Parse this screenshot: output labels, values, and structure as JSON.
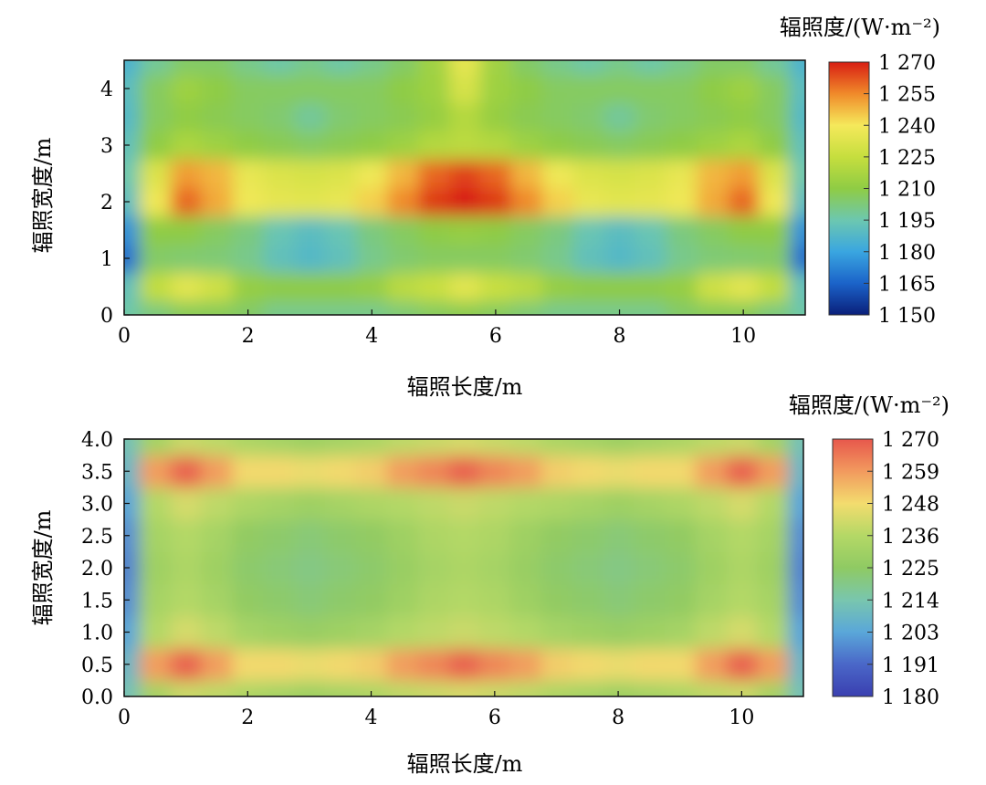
{
  "chart_data": [
    {
      "type": "heatmap",
      "title": "",
      "xlabel": "辐照长度/m",
      "ylabel": "辐照宽度/m",
      "colorbar_label": "辐照度/(W·m⁻²)",
      "xlim": [
        0,
        11
      ],
      "ylim": [
        0,
        4.5
      ],
      "xticks": [
        0,
        2,
        4,
        6,
        8,
        10
      ],
      "yticks": [
        0,
        1,
        2,
        3,
        4
      ],
      "colorbar_ticks": [
        "1 270",
        "1 255",
        "1 240",
        "1 225",
        "1 210",
        "1 195",
        "1 180",
        "1 165",
        "1 150"
      ],
      "vmin": 1150,
      "vmax": 1270,
      "x": [
        0,
        0.5,
        1,
        1.5,
        2,
        2.5,
        3,
        3.5,
        4,
        4.5,
        5,
        5.5,
        6,
        6.5,
        7,
        7.5,
        8,
        8.5,
        9,
        9.5,
        10,
        10.5,
        11
      ],
      "y": [
        0,
        0.5,
        1,
        1.5,
        2,
        2.5,
        3,
        3.5,
        4,
        4.5
      ],
      "z": [
        [
          1196,
          1202,
          1207,
          1207,
          1205,
          1200,
          1200,
          1200,
          1200,
          1203,
          1206,
          1208,
          1206,
          1203,
          1200,
          1200,
          1200,
          1200,
          1205,
          1207,
          1207,
          1202,
          1196
        ],
        [
          1192,
          1224,
          1234,
          1228,
          1212,
          1210,
          1210,
          1210,
          1212,
          1222,
          1226,
          1234,
          1226,
          1222,
          1212,
          1210,
          1210,
          1210,
          1212,
          1228,
          1234,
          1224,
          1192
        ],
        [
          1168,
          1205,
          1204,
          1203,
          1200,
          1192,
          1188,
          1192,
          1200,
          1204,
          1206,
          1206,
          1206,
          1204,
          1200,
          1192,
          1188,
          1192,
          1200,
          1203,
          1204,
          1205,
          1168
        ],
        [
          1175,
          1210,
          1210,
          1206,
          1202,
          1194,
          1190,
          1194,
          1202,
          1206,
          1210,
          1212,
          1210,
          1206,
          1202,
          1194,
          1190,
          1194,
          1202,
          1206,
          1210,
          1210,
          1175
        ],
        [
          1190,
          1238,
          1260,
          1250,
          1238,
          1235,
          1234,
          1236,
          1244,
          1255,
          1266,
          1270,
          1266,
          1255,
          1244,
          1236,
          1234,
          1235,
          1238,
          1250,
          1260,
          1238,
          1190
        ],
        [
          1195,
          1232,
          1252,
          1248,
          1236,
          1232,
          1230,
          1232,
          1238,
          1248,
          1260,
          1265,
          1260,
          1248,
          1238,
          1232,
          1230,
          1232,
          1236,
          1248,
          1252,
          1232,
          1195
        ],
        [
          1192,
          1210,
          1218,
          1214,
          1210,
          1208,
          1206,
          1208,
          1210,
          1214,
          1220,
          1222,
          1220,
          1214,
          1210,
          1208,
          1206,
          1208,
          1210,
          1214,
          1218,
          1210,
          1192
        ],
        [
          1188,
          1206,
          1210,
          1208,
          1206,
          1204,
          1198,
          1204,
          1206,
          1208,
          1212,
          1220,
          1212,
          1208,
          1206,
          1204,
          1198,
          1204,
          1206,
          1208,
          1210,
          1206,
          1188
        ],
        [
          1190,
          1206,
          1214,
          1210,
          1206,
          1206,
          1206,
          1206,
          1206,
          1210,
          1214,
          1230,
          1214,
          1210,
          1206,
          1206,
          1206,
          1206,
          1206,
          1210,
          1214,
          1206,
          1190
        ],
        [
          1185,
          1198,
          1205,
          1205,
          1200,
          1196,
          1200,
          1196,
          1200,
          1205,
          1215,
          1235,
          1215,
          1205,
          1200,
          1196,
          1200,
          1196,
          1200,
          1205,
          1205,
          1198,
          1185
        ]
      ]
    },
    {
      "type": "heatmap",
      "title": "",
      "xlabel": "辐照长度/m",
      "ylabel": "辐照宽度/m",
      "colorbar_label": "辐照度/(W·m⁻²)",
      "xlim": [
        0,
        11
      ],
      "ylim": [
        0,
        4
      ],
      "xticks": [
        0,
        2,
        4,
        6,
        8,
        10
      ],
      "yticks": [
        0,
        0.5,
        1.0,
        1.5,
        2.0,
        2.5,
        3.0,
        3.5,
        4.0
      ],
      "colorbar_ticks": [
        "1 270",
        "1 259",
        "1 248",
        "1 236",
        "1 225",
        "1 214",
        "1 203",
        "1 191",
        "1 180"
      ],
      "vmin": 1180,
      "vmax": 1270,
      "x": [
        0,
        0.5,
        1,
        1.5,
        2,
        2.5,
        3,
        3.5,
        4,
        4.5,
        5,
        5.5,
        6,
        6.5,
        7,
        7.5,
        8,
        8.5,
        9,
        9.5,
        10,
        10.5,
        11
      ],
      "y": [
        0,
        0.5,
        1,
        1.5,
        2,
        2.5,
        3,
        3.5,
        4
      ],
      "z": [
        [
          1212,
          1232,
          1240,
          1238,
          1234,
          1232,
          1230,
          1232,
          1234,
          1238,
          1240,
          1242,
          1240,
          1238,
          1234,
          1232,
          1230,
          1232,
          1234,
          1238,
          1240,
          1232,
          1212
        ],
        [
          1208,
          1258,
          1268,
          1258,
          1248,
          1248,
          1246,
          1248,
          1250,
          1258,
          1262,
          1268,
          1262,
          1258,
          1250,
          1248,
          1246,
          1248,
          1248,
          1258,
          1268,
          1258,
          1208
        ],
        [
          1202,
          1236,
          1242,
          1238,
          1232,
          1230,
          1228,
          1230,
          1232,
          1236,
          1238,
          1240,
          1238,
          1236,
          1232,
          1230,
          1228,
          1230,
          1232,
          1238,
          1242,
          1236,
          1202
        ],
        [
          1198,
          1232,
          1236,
          1232,
          1226,
          1224,
          1222,
          1224,
          1226,
          1230,
          1234,
          1236,
          1234,
          1230,
          1226,
          1224,
          1222,
          1224,
          1226,
          1232,
          1236,
          1232,
          1198
        ],
        [
          1196,
          1230,
          1234,
          1230,
          1224,
          1222,
          1220,
          1222,
          1224,
          1228,
          1232,
          1234,
          1232,
          1228,
          1224,
          1222,
          1220,
          1222,
          1224,
          1230,
          1234,
          1230,
          1196
        ],
        [
          1198,
          1232,
          1236,
          1232,
          1226,
          1224,
          1222,
          1224,
          1226,
          1230,
          1234,
          1236,
          1234,
          1230,
          1226,
          1224,
          1222,
          1224,
          1226,
          1232,
          1236,
          1232,
          1198
        ],
        [
          1202,
          1236,
          1242,
          1238,
          1234,
          1232,
          1230,
          1232,
          1234,
          1236,
          1238,
          1240,
          1238,
          1236,
          1234,
          1232,
          1230,
          1232,
          1234,
          1238,
          1242,
          1236,
          1202
        ],
        [
          1208,
          1258,
          1268,
          1258,
          1248,
          1248,
          1246,
          1248,
          1250,
          1258,
          1262,
          1268,
          1262,
          1258,
          1250,
          1248,
          1246,
          1248,
          1248,
          1258,
          1268,
          1258,
          1208
        ],
        [
          1212,
          1232,
          1240,
          1238,
          1234,
          1232,
          1230,
          1232,
          1234,
          1238,
          1240,
          1242,
          1240,
          1238,
          1234,
          1232,
          1230,
          1232,
          1234,
          1238,
          1240,
          1232,
          1212
        ]
      ]
    }
  ]
}
